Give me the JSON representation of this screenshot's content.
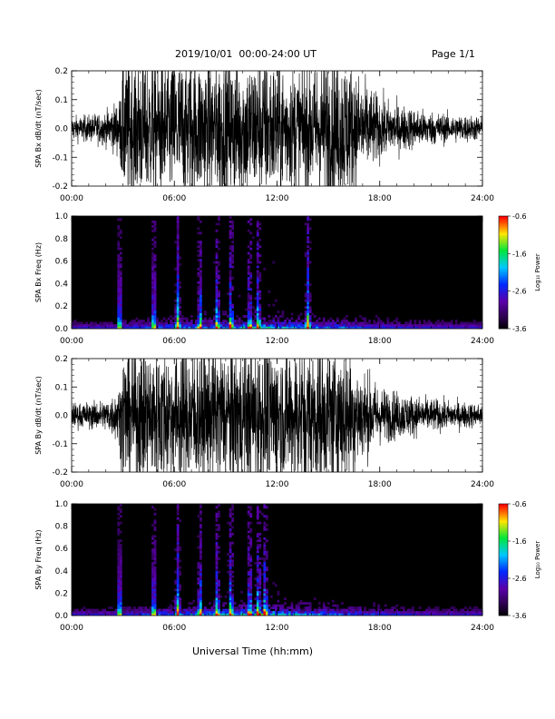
{
  "header": {
    "title": "2019/10/01  00:00-24:00 UT",
    "page": "Page 1/1"
  },
  "x_axis_label": "Universal Time (hh:mm)",
  "colorbar": {
    "label": "Log₁₀ Power",
    "ticks": [
      "-0.6",
      "-1.6",
      "-2.6",
      "-3.6"
    ],
    "range": [
      -3.6,
      -0.6
    ]
  },
  "chart_data": [
    {
      "type": "line",
      "id": "bx_timeseries",
      "ylabel": "SPA Bx dB/dt (nT/sec)",
      "x_ticks": [
        "00:00",
        "06:00",
        "12:00",
        "18:00",
        "24:00"
      ],
      "y_ticks": [
        "0.2",
        "0.1",
        "0.0",
        "-0.1",
        "-0.2"
      ],
      "xlim": [
        0,
        24
      ],
      "ylim": [
        -0.2,
        0.2
      ],
      "envelope_hours": [
        0,
        1,
        2,
        2.8,
        3,
        4,
        5,
        6,
        7,
        8,
        9,
        10,
        11,
        12,
        13,
        14,
        15,
        16,
        17,
        18,
        19,
        20,
        21,
        22,
        23,
        24
      ],
      "envelope_amplitude": [
        0.05,
        0.055,
        0.07,
        0.12,
        0.3,
        0.3,
        0.3,
        0.3,
        0.3,
        0.3,
        0.3,
        0.3,
        0.3,
        0.28,
        0.25,
        0.28,
        0.3,
        0.3,
        0.2,
        0.13,
        0.1,
        0.085,
        0.07,
        0.06,
        0.055,
        0.05
      ]
    },
    {
      "type": "heatmap",
      "id": "bx_spectrogram",
      "ylabel": "SPA Bx Freq (Hz)",
      "x_ticks": [
        "00:00",
        "06:00",
        "12:00",
        "18:00",
        "24:00"
      ],
      "y_ticks": [
        "1.0",
        "0.8",
        "0.6",
        "0.4",
        "0.2",
        "0.0"
      ],
      "xlim": [
        0,
        24
      ],
      "ylim": [
        0,
        1
      ],
      "log10_power_range": [
        -3.6,
        -0.6
      ],
      "burst_hours": [
        2.8,
        4.8,
        6.2,
        7.5,
        8.5,
        9.3,
        10.4,
        10.9,
        13.8
      ]
    },
    {
      "type": "line",
      "id": "by_timeseries",
      "ylabel": "SPA By dB/dt (nT/sec)",
      "x_ticks": [
        "00:00",
        "06:00",
        "12:00",
        "18:00",
        "24:00"
      ],
      "y_ticks": [
        "0.2",
        "0.1",
        "0.0",
        "-0.1",
        "-0.2"
      ],
      "xlim": [
        0,
        24
      ],
      "ylim": [
        -0.2,
        0.2
      ],
      "envelope_hours": [
        0,
        1,
        2,
        2.8,
        3,
        4,
        5,
        6,
        7,
        8,
        9,
        10,
        11,
        12,
        13,
        14,
        15,
        16,
        17,
        18,
        19,
        20,
        21,
        22,
        23,
        24
      ],
      "envelope_amplitude": [
        0.05,
        0.055,
        0.065,
        0.12,
        0.3,
        0.3,
        0.3,
        0.3,
        0.3,
        0.3,
        0.3,
        0.3,
        0.3,
        0.3,
        0.3,
        0.3,
        0.3,
        0.3,
        0.2,
        0.12,
        0.1,
        0.085,
        0.07,
        0.06,
        0.055,
        0.05
      ]
    },
    {
      "type": "heatmap",
      "id": "by_spectrogram",
      "ylabel": "SPA By Freq (Hz)",
      "x_ticks": [
        "00:00",
        "06:00",
        "12:00",
        "18:00",
        "24:00"
      ],
      "y_ticks": [
        "1.0",
        "0.8",
        "0.6",
        "0.4",
        "0.2",
        "0.0"
      ],
      "xlim": [
        0,
        24
      ],
      "ylim": [
        0,
        1
      ],
      "log10_power_range": [
        -3.6,
        -0.6
      ],
      "burst_hours": [
        2.8,
        4.8,
        6.2,
        7.5,
        8.5,
        9.3,
        10.4,
        10.9,
        11.3
      ]
    }
  ]
}
